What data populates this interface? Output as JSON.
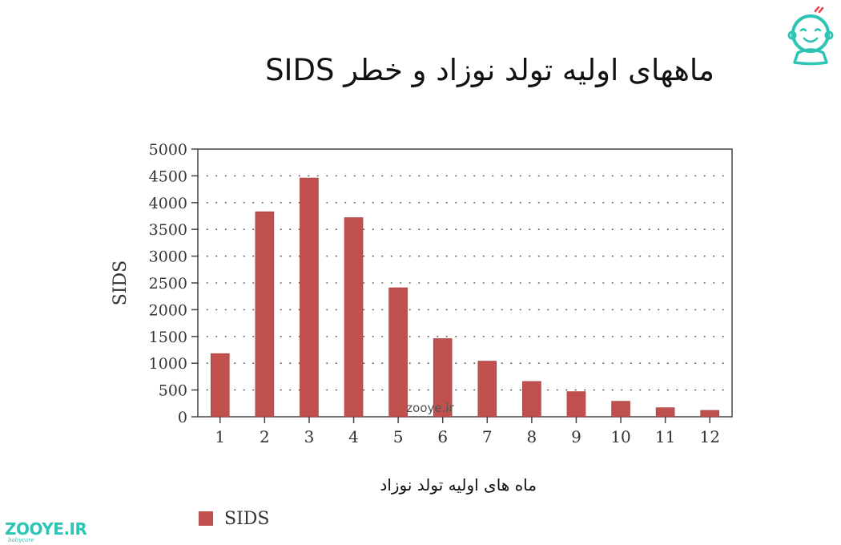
{
  "page": {
    "title": "ماههای اولیه تولد نوزاد و خطر SIDS",
    "watermark": "zooye.ir",
    "brand": {
      "name": "ZOOYE.IR",
      "tagline": "babycare"
    }
  },
  "colors": {
    "bar": "#c0504d",
    "accent": "#2cc5b5",
    "accent_red": "#e8424a",
    "axis": "#444444",
    "grid": "#555555"
  },
  "icons": {
    "logo": "baby-face-icon"
  },
  "chart_data": {
    "type": "bar",
    "categories": [
      "1",
      "2",
      "3",
      "4",
      "5",
      "6",
      "7",
      "8",
      "9",
      "10",
      "11",
      "12"
    ],
    "series": [
      {
        "name": "SIDS",
        "values": [
          1180,
          3830,
          4460,
          3720,
          2410,
          1460,
          1040,
          660,
          470,
          290,
          170,
          120
        ]
      }
    ],
    "yticks": [
      "0",
      "500",
      "1000",
      "1500",
      "2000",
      "2500",
      "3000",
      "3500",
      "4000",
      "4500",
      "5000"
    ],
    "xlabel": "ماه های اولیه تولد نوزاد",
    "ylabel": "SIDS",
    "ylim": [
      0,
      5000
    ],
    "ytick_step": 500,
    "grid": "horizontal-dotted",
    "legend": "bottom-left"
  }
}
